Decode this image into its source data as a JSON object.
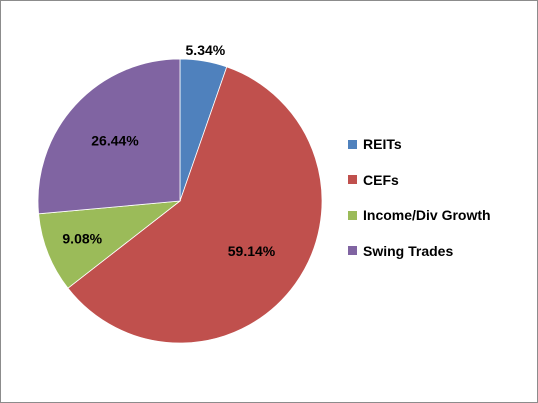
{
  "chart_data": {
    "type": "pie",
    "title": "",
    "categories": [
      "REITs",
      "CEFs",
      "Income/Div Growth",
      "Swing Trades"
    ],
    "values": [
      5.34,
      59.14,
      9.08,
      26.44
    ],
    "labels": [
      "5.34%",
      "59.14%",
      "9.08%",
      "26.44%"
    ],
    "colors": [
      "#4f81bd",
      "#c0504d",
      "#9bbb59",
      "#8064a2"
    ],
    "start_angle_deg": 0,
    "direction": "clockwise",
    "legend": "right"
  }
}
